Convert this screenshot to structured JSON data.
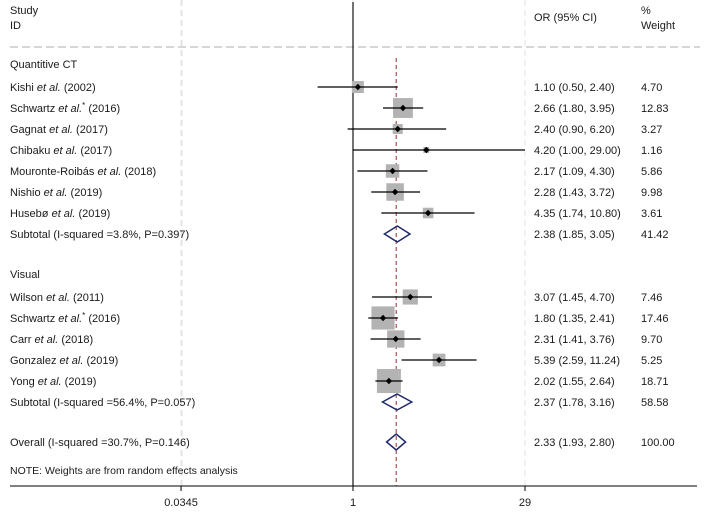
{
  "header": {
    "study_line1": "Study",
    "study_line2": "ID",
    "or_label": "OR (95% CI)",
    "weight_line1": "%",
    "weight_line2": "Weight"
  },
  "chart_data": {
    "type": "forest",
    "x_scale": "log",
    "x_ticks": [
      {
        "value": 0.0345,
        "label": "0.0345"
      },
      {
        "value": 1,
        "label": "1"
      },
      {
        "value": 29,
        "label": "29"
      }
    ],
    "reference_line": 1,
    "overall_line": 2.33,
    "groups": [
      {
        "name": "Quantitive CT",
        "studies": [
          {
            "author": "Kishi",
            "etal": true,
            "star": false,
            "year": "(2002)",
            "or": 1.1,
            "lo": 0.5,
            "hi": 2.4,
            "ci_text": "1.10 (0.50, 2.40)",
            "weight": 4.7,
            "weight_text": "4.70"
          },
          {
            "author": "Schwartz",
            "etal": true,
            "star": true,
            "year": "(2016)",
            "or": 2.66,
            "lo": 1.8,
            "hi": 3.95,
            "ci_text": "2.66 (1.80, 3.95)",
            "weight": 12.83,
            "weight_text": "12.83"
          },
          {
            "author": "Gagnat",
            "etal": true,
            "star": false,
            "year": "(2017)",
            "or": 2.4,
            "lo": 0.9,
            "hi": 6.2,
            "ci_text": "2.40 (0.90, 6.20)",
            "weight": 3.27,
            "weight_text": "3.27"
          },
          {
            "author": "Chibaku",
            "etal": true,
            "star": false,
            "year": "(2017)",
            "or": 4.2,
            "lo": 1.0,
            "hi": 29.0,
            "ci_text": "4.20 (1.00, 29.00)",
            "weight": 1.16,
            "weight_text": "1.16"
          },
          {
            "author": "Mouronte-Roibás",
            "etal": true,
            "star": false,
            "year": "(2018)",
            "or": 2.17,
            "lo": 1.09,
            "hi": 4.3,
            "ci_text": "2.17 (1.09, 4.30)",
            "weight": 5.86,
            "weight_text": "5.86"
          },
          {
            "author": "Nishio",
            "etal": true,
            "star": false,
            "year": "(2019)",
            "or": 2.28,
            "lo": 1.43,
            "hi": 3.72,
            "ci_text": "2.28 (1.43, 3.72)",
            "weight": 9.98,
            "weight_text": "9.98"
          },
          {
            "author": "Husebø",
            "etal": true,
            "star": false,
            "year": "(2019)",
            "or": 4.35,
            "lo": 1.74,
            "hi": 10.8,
            "ci_text": "4.35 (1.74, 10.80)",
            "weight": 3.61,
            "weight_text": "3.61"
          }
        ],
        "subtotal": {
          "label": "Subtotal  (I-squared =3.8%, P=0.397)",
          "or": 2.38,
          "lo": 1.85,
          "hi": 3.05,
          "ci_text": "2.38 (1.85, 3.05)",
          "weight_text": "41.42"
        }
      },
      {
        "name": "Visual",
        "studies": [
          {
            "author": "Wilson",
            "etal": true,
            "star": false,
            "year": "(2011)",
            "or": 3.07,
            "lo": 1.45,
            "hi": 4.7,
            "ci_text": "3.07 (1.45, 4.70)",
            "weight": 7.46,
            "weight_text": "7.46"
          },
          {
            "author": "Schwartz",
            "etal": true,
            "star": true,
            "year": "(2016)",
            "or": 1.8,
            "lo": 1.35,
            "hi": 2.41,
            "ci_text": "1.80 (1.35, 2.41)",
            "weight": 17.46,
            "weight_text": "17.46"
          },
          {
            "author": "Carr",
            "etal": true,
            "star": false,
            "year": "(2018)",
            "or": 2.31,
            "lo": 1.41,
            "hi": 3.76,
            "ci_text": "2.31 (1.41, 3.76)",
            "weight": 9.7,
            "weight_text": "9.70"
          },
          {
            "author": "Gonzalez",
            "etal": true,
            "star": false,
            "year": "(2019)",
            "or": 5.39,
            "lo": 2.59,
            "hi": 11.24,
            "ci_text": "5.39 (2.59, 11.24)",
            "weight": 5.25,
            "weight_text": "5.25"
          },
          {
            "author": "Yong",
            "etal": true,
            "star": false,
            "year": "(2019)",
            "or": 2.02,
            "lo": 1.55,
            "hi": 2.64,
            "ci_text": "2.02 (1.55, 2.64)",
            "weight": 18.71,
            "weight_text": "18.71"
          }
        ],
        "subtotal": {
          "label": "Subtotal  (I-squared =56.4%, P=0.057)",
          "or": 2.37,
          "lo": 1.78,
          "hi": 3.16,
          "ci_text": "2.37 (1.78, 3.16)",
          "weight_text": "58.58"
        }
      }
    ],
    "overall": {
      "label": "Overall  (I-squared =30.7%, P=0.146)",
      "or": 2.33,
      "lo": 1.93,
      "hi": 2.8,
      "ci_text": "2.33 (1.93, 2.80)",
      "weight_text": "100.00"
    },
    "note": "NOTE: Weights are from random effects analysis",
    "colors": {
      "box": "#b3b3b3",
      "line": "#000000",
      "diamond": "#1f2a6b",
      "overall_line": "#a0403a",
      "dashed_separator": "#c8c8c8",
      "grid": "#e3e3e3"
    }
  }
}
